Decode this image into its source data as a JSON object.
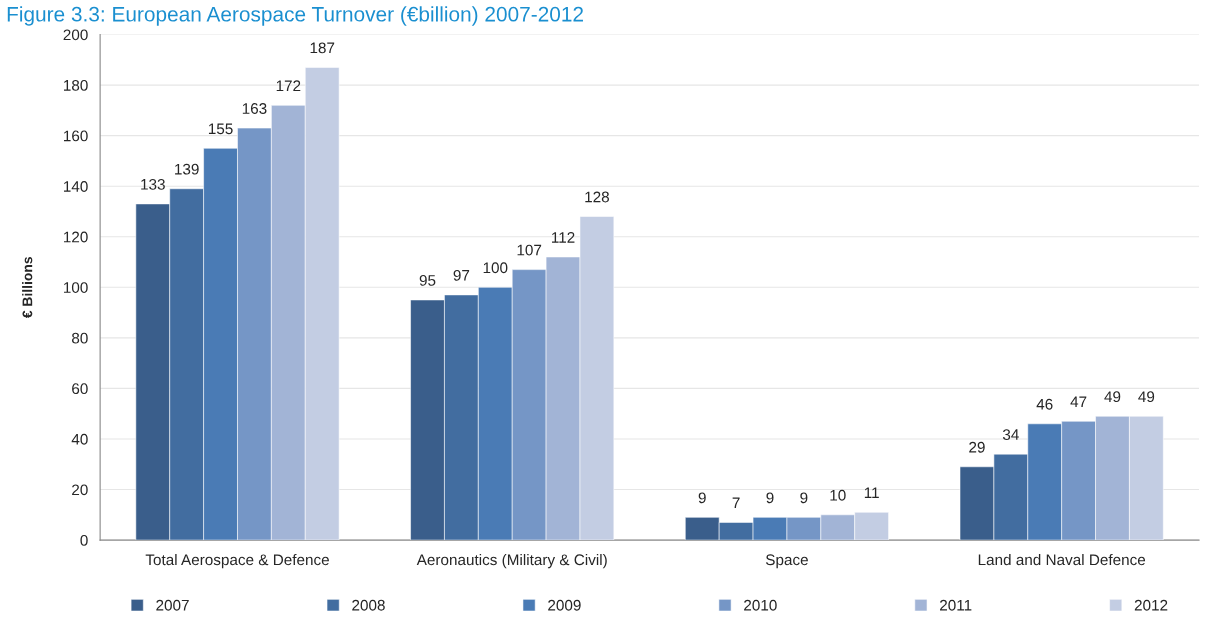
{
  "chart_data": {
    "type": "bar",
    "title": "Figure 3.3: European Aerospace Turnover (€billion) 2007-2012",
    "ylabel": "€ Billions",
    "categories": [
      "Total Aerospace & Defence",
      "Aeronautics (Military & Civil)",
      "Space",
      "Land and Naval Defence"
    ],
    "series": [
      {
        "name": "2007",
        "color": "#3a5e8b",
        "values": [
          133,
          95,
          9,
          29
        ]
      },
      {
        "name": "2008",
        "color": "#426da0",
        "values": [
          139,
          97,
          7,
          34
        ]
      },
      {
        "name": "2009",
        "color": "#4a7bb5",
        "values": [
          155,
          100,
          9,
          46
        ]
      },
      {
        "name": "2010",
        "color": "#7596c6",
        "values": [
          163,
          107,
          9,
          47
        ]
      },
      {
        "name": "2011",
        "color": "#a2b4d6",
        "values": [
          172,
          112,
          10,
          49
        ]
      },
      {
        "name": "2012",
        "color": "#c3cde3",
        "values": [
          187,
          128,
          11,
          49
        ]
      }
    ],
    "ylim": [
      0,
      200
    ],
    "yticks": [
      0,
      20,
      40,
      60,
      80,
      100,
      120,
      140,
      160,
      180,
      200
    ],
    "grid": "y",
    "legend": "bottom",
    "data_labels": true
  }
}
